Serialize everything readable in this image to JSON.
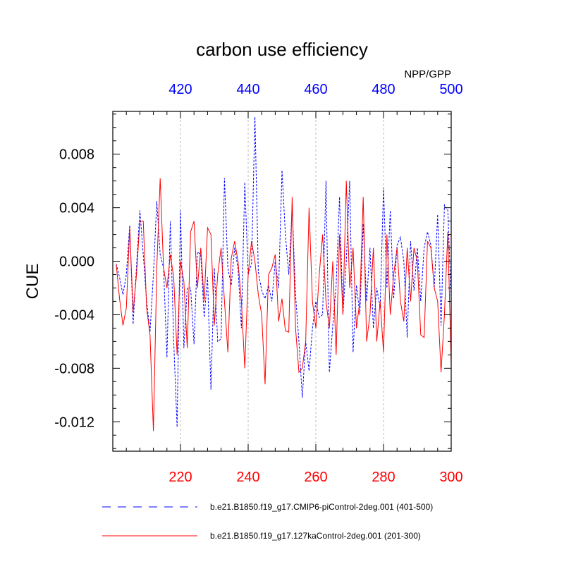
{
  "chart_data": {
    "type": "line",
    "title": "carbon use efficiency",
    "top_right_label": "NPP/GPP",
    "ylabel": "CUE",
    "ylim": [
      -0.0142,
      0.0112
    ],
    "yticks": [
      -0.012,
      -0.008,
      -0.004,
      0.0,
      0.004,
      0.008
    ],
    "ytick_labels": [
      "-0.012",
      "-0.008",
      "-0.004",
      "0.000",
      "0.004",
      "0.008"
    ],
    "x_bottom": {
      "range": [
        200,
        300
      ],
      "ticks": [
        220,
        240,
        260,
        280,
        300
      ],
      "tick_labels": [
        "220",
        "240",
        "260",
        "280",
        "300"
      ],
      "color": "#ff0000"
    },
    "x_top": {
      "range": [
        400,
        500
      ],
      "ticks": [
        420,
        440,
        460,
        480,
        500
      ],
      "tick_labels": [
        "420",
        "440",
        "460",
        "480",
        "500"
      ],
      "color": "#0000ff"
    },
    "grid": "vertical dashed at major x ticks",
    "series": [
      {
        "name": "b.e21.B1850.f19_g17.CMIP6-piControl-2deg.001 (401-500)",
        "axis": "top",
        "color": "#0000ff",
        "dash": "dashed",
        "x_start": 401,
        "values": [
          -0.0002,
          -0.0012,
          -0.0025,
          -0.001,
          0.0027,
          -0.0047,
          -0.0004,
          0.0038,
          0.0005,
          -0.003,
          -0.0053,
          -0.001,
          0.0045,
          0.0005,
          -0.0005,
          -0.0072,
          0.003,
          -0.006,
          -0.0124,
          0.0038,
          -0.0065,
          -0.002,
          -0.002,
          -0.0062,
          0.0007,
          0.0005,
          -0.0042,
          -0.0012,
          -0.0096,
          -0.0005,
          -0.006,
          -0.0058,
          0.0062,
          -0.0005,
          -0.0018,
          0.001,
          -0.0005,
          -0.005,
          0.0059,
          -0.001,
          -0.0002,
          0.0108,
          -0.0008,
          -0.0022,
          -0.0028,
          -0.0018,
          -0.003,
          0.0,
          -0.002,
          0.0068,
          0.002,
          -0.001,
          0.004,
          -0.0025,
          -0.006,
          -0.0102,
          -0.006,
          -0.0082,
          -0.005,
          -0.003,
          -0.0042,
          -0.004,
          0.006,
          -0.0083,
          -0.0048,
          -0.0018,
          0.0048,
          -0.004,
          0.0,
          0.006,
          -0.0068,
          -0.0018,
          -0.004,
          0.0028,
          -0.003,
          0.001,
          -0.005,
          -0.002,
          -0.0035,
          0.0055,
          -0.002,
          0.0038,
          -0.0028,
          0.0012,
          0.0018,
          0.0,
          -0.0057,
          0.0015,
          -0.0022,
          0.001,
          -0.003,
          0.001,
          0.0022,
          0.0012,
          -0.002,
          0.0035,
          -0.0048,
          0.0042,
          0.0038,
          -0.003
        ]
      },
      {
        "name": "b.e21.B1850.f19_g17.127kaControl-2deg.001 (201-300)",
        "axis": "bottom",
        "color": "#ff0000",
        "dash": "solid",
        "x_start": 201,
        "values": [
          -0.0002,
          -0.0028,
          -0.0048,
          -0.0035,
          0.0025,
          -0.0038,
          -0.001,
          0.003,
          0.003,
          -0.0035,
          -0.0055,
          -0.0127,
          -0.0005,
          0.0062,
          -0.0005,
          -0.002,
          0.0005,
          -0.0012,
          -0.007,
          0.0,
          -0.0015,
          -0.0065,
          0.0022,
          0.003,
          -0.002,
          0.001,
          -0.003,
          0.0025,
          0.002,
          -0.0048,
          -0.001,
          0.001,
          -0.003,
          -0.0068,
          0.0002,
          0.0015,
          0.0,
          -0.003,
          -0.008,
          -0.001,
          0.0015,
          0.0,
          -0.0025,
          -0.004,
          -0.0092,
          -0.001,
          -0.0005,
          0.0005,
          -0.0045,
          -0.0028,
          -0.0052,
          -0.0053,
          0.0048,
          -0.005,
          -0.0083,
          -0.008,
          -0.006,
          0.004,
          -0.003,
          -0.005,
          -0.001,
          0.002,
          -0.003,
          -0.005,
          0.0,
          -0.007,
          0.002,
          -0.004,
          0.006,
          -0.002,
          0.001,
          -0.005,
          -0.003,
          0.0048,
          -0.006,
          -0.004,
          0.001,
          -0.006,
          -0.003,
          -0.0068,
          0.002,
          -0.004,
          -0.001,
          0.001,
          -0.003,
          -0.0045,
          0.001,
          -0.003,
          0.001,
          0.0,
          -0.0055,
          -0.0057,
          0.0015,
          0.001,
          -0.002,
          -0.003,
          -0.0083,
          -0.004,
          0.0022,
          -0.0078
        ]
      }
    ]
  }
}
